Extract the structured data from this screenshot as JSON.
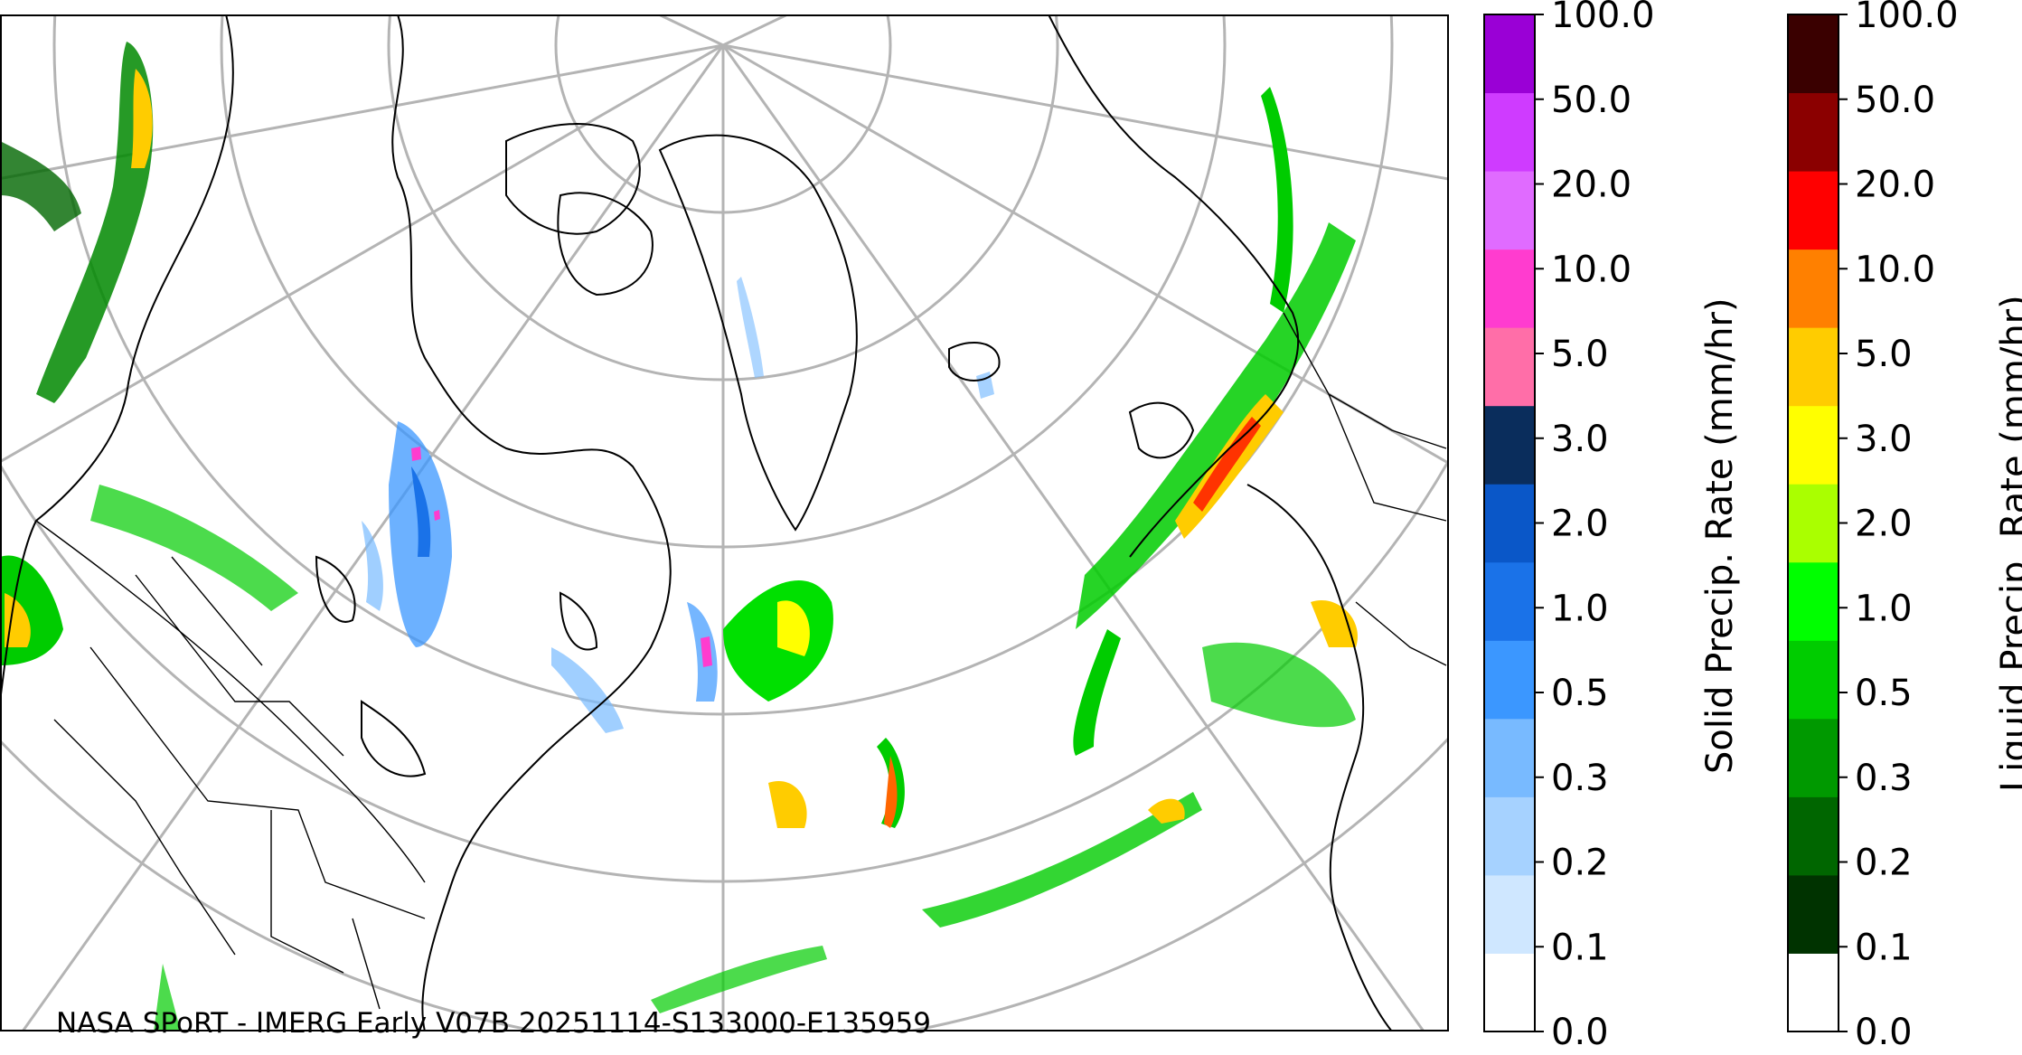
{
  "map": {
    "credit": "NASA SPoRT - IMERG Early V07B 20251114-S133000-E135959",
    "colors": {
      "coastline": "#000000",
      "graticule": "#b4b4b4",
      "background": "#ffffff"
    }
  },
  "solid_colorbar": {
    "label": "Solid Precip. Rate (mm/hr)",
    "tick_labels": [
      "0.0",
      "0.1",
      "0.2",
      "0.3",
      "0.5",
      "1.0",
      "2.0",
      "3.0",
      "5.0",
      "10.0",
      "20.0",
      "50.0",
      "100.0"
    ],
    "colors": [
      "#ffffff",
      "#cfe7ff",
      "#a6d2ff",
      "#78baff",
      "#3b97ff",
      "#1a72e8",
      "#0a57c8",
      "#0a2d5c",
      "#ff6ea8",
      "#ff3ccf",
      "#e06bff",
      "#cf3bff",
      "#9a00d6"
    ]
  },
  "liquid_colorbar": {
    "label": "Liquid Precip. Rate (mm/hr)",
    "tick_labels": [
      "0.0",
      "0.1",
      "0.2",
      "0.3",
      "0.5",
      "1.0",
      "2.0",
      "3.0",
      "5.0",
      "10.0",
      "20.0",
      "50.0",
      "100.0"
    ],
    "colors": [
      "#ffffff",
      "#003300",
      "#006600",
      "#009900",
      "#00cc00",
      "#00ff00",
      "#aaff00",
      "#ffff00",
      "#ffcc00",
      "#ff8000",
      "#ff0000",
      "#8b0000",
      "#3a0000"
    ]
  }
}
